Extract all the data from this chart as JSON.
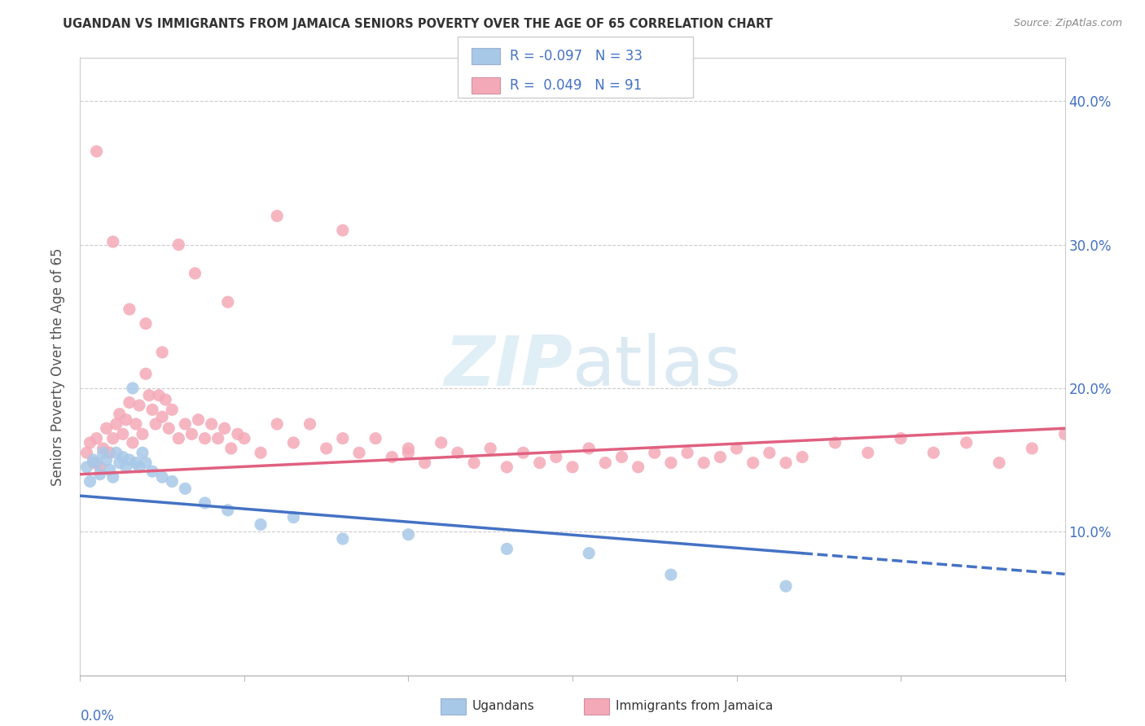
{
  "title": "UGANDAN VS IMMIGRANTS FROM JAMAICA SENIORS POVERTY OVER THE AGE OF 65 CORRELATION CHART",
  "source": "Source: ZipAtlas.com",
  "ylabel": "Seniors Poverty Over the Age of 65",
  "xlim": [
    0.0,
    0.3
  ],
  "ylim": [
    0.0,
    0.43
  ],
  "yticks": [
    0.1,
    0.2,
    0.3,
    0.4
  ],
  "ytick_labels": [
    "10.0%",
    "20.0%",
    "30.0%",
    "40.0%"
  ],
  "xticks": [
    0.0,
    0.05,
    0.1,
    0.15,
    0.2,
    0.25,
    0.3
  ],
  "ugandan_color": "#a8c8e8",
  "jamaican_color": "#f4a9b8",
  "ugandan_line_color": "#4472c4",
  "jamaican_line_color": "#e06080",
  "background_color": "#ffffff",
  "ugandan_x": [
    0.002,
    0.003,
    0.004,
    0.005,
    0.006,
    0.007,
    0.008,
    0.009,
    0.01,
    0.011,
    0.012,
    0.013,
    0.014,
    0.015,
    0.016,
    0.017,
    0.018,
    0.019,
    0.02,
    0.022,
    0.025,
    0.028,
    0.032,
    0.038,
    0.045,
    0.055,
    0.065,
    0.08,
    0.1,
    0.13,
    0.155,
    0.18,
    0.215
  ],
  "ugandan_y": [
    0.145,
    0.135,
    0.15,
    0.148,
    0.14,
    0.155,
    0.15,
    0.143,
    0.138,
    0.155,
    0.148,
    0.152,
    0.145,
    0.15,
    0.2,
    0.148,
    0.145,
    0.155,
    0.148,
    0.142,
    0.138,
    0.135,
    0.13,
    0.12,
    0.115,
    0.105,
    0.11,
    0.095,
    0.098,
    0.088,
    0.085,
    0.07,
    0.062
  ],
  "jamaican_x": [
    0.002,
    0.003,
    0.004,
    0.005,
    0.006,
    0.007,
    0.008,
    0.009,
    0.01,
    0.011,
    0.012,
    0.013,
    0.014,
    0.015,
    0.016,
    0.017,
    0.018,
    0.019,
    0.02,
    0.021,
    0.022,
    0.023,
    0.024,
    0.025,
    0.026,
    0.027,
    0.028,
    0.03,
    0.032,
    0.034,
    0.036,
    0.038,
    0.04,
    0.042,
    0.044,
    0.046,
    0.048,
    0.05,
    0.055,
    0.06,
    0.065,
    0.07,
    0.075,
    0.08,
    0.085,
    0.09,
    0.095,
    0.1,
    0.105,
    0.11,
    0.115,
    0.12,
    0.125,
    0.13,
    0.135,
    0.14,
    0.145,
    0.15,
    0.155,
    0.16,
    0.165,
    0.17,
    0.175,
    0.18,
    0.185,
    0.19,
    0.195,
    0.2,
    0.205,
    0.21,
    0.215,
    0.22,
    0.23,
    0.24,
    0.25,
    0.26,
    0.27,
    0.28,
    0.29,
    0.3,
    0.005,
    0.01,
    0.015,
    0.02,
    0.025,
    0.03,
    0.035,
    0.045,
    0.06,
    0.08,
    0.1
  ],
  "jamaican_y": [
    0.155,
    0.162,
    0.148,
    0.165,
    0.145,
    0.158,
    0.172,
    0.155,
    0.165,
    0.175,
    0.182,
    0.168,
    0.178,
    0.19,
    0.162,
    0.175,
    0.188,
    0.168,
    0.21,
    0.195,
    0.185,
    0.175,
    0.195,
    0.18,
    0.192,
    0.172,
    0.185,
    0.165,
    0.175,
    0.168,
    0.178,
    0.165,
    0.175,
    0.165,
    0.172,
    0.158,
    0.168,
    0.165,
    0.155,
    0.175,
    0.162,
    0.175,
    0.158,
    0.165,
    0.155,
    0.165,
    0.152,
    0.158,
    0.148,
    0.162,
    0.155,
    0.148,
    0.158,
    0.145,
    0.155,
    0.148,
    0.152,
    0.145,
    0.158,
    0.148,
    0.152,
    0.145,
    0.155,
    0.148,
    0.155,
    0.148,
    0.152,
    0.158,
    0.148,
    0.155,
    0.148,
    0.152,
    0.162,
    0.155,
    0.165,
    0.155,
    0.162,
    0.148,
    0.158,
    0.168,
    0.365,
    0.302,
    0.255,
    0.245,
    0.225,
    0.3,
    0.28,
    0.26,
    0.32,
    0.31,
    0.155
  ]
}
